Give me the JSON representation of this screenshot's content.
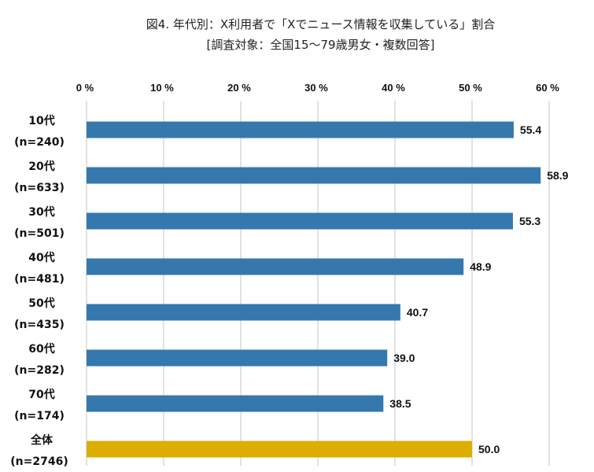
{
  "chart_data": {
    "type": "bar",
    "orientation": "horizontal",
    "title": "図4. 年代別：X利用者で「Xでニュース情報を収集している」割合",
    "subtitle": "[調査対象：全国15～79歳男女・複数回答]",
    "categories": [
      {
        "label": "10代",
        "n": "(n=240)"
      },
      {
        "label": "20代",
        "n": "(n=633)"
      },
      {
        "label": "30代",
        "n": "(n=501)"
      },
      {
        "label": "40代",
        "n": "(n=481)"
      },
      {
        "label": "50代",
        "n": "(n=435)"
      },
      {
        "label": "60代",
        "n": "(n=282)"
      },
      {
        "label": "70代",
        "n": "(n=174)"
      },
      {
        "label": "全体",
        "n": "(n=2746)"
      }
    ],
    "values": [
      55.4,
      58.9,
      55.3,
      48.9,
      40.7,
      39.0,
      38.5,
      50.0
    ],
    "value_labels": [
      "55.4",
      "58.9",
      "55.3",
      "48.9",
      "40.7",
      "39.0",
      "38.5",
      "50.0"
    ],
    "xlim": [
      0,
      60
    ],
    "ticks": [
      "0 %",
      "10 %",
      "20 %",
      "30 %",
      "40 %",
      "50 %",
      "60 %"
    ],
    "tick_values": [
      0,
      10,
      20,
      30,
      40,
      50,
      60
    ],
    "grid": true,
    "colors": {
      "bar": "#3478ae",
      "total": "#dcae00",
      "grid": "#d9d9d9"
    }
  }
}
